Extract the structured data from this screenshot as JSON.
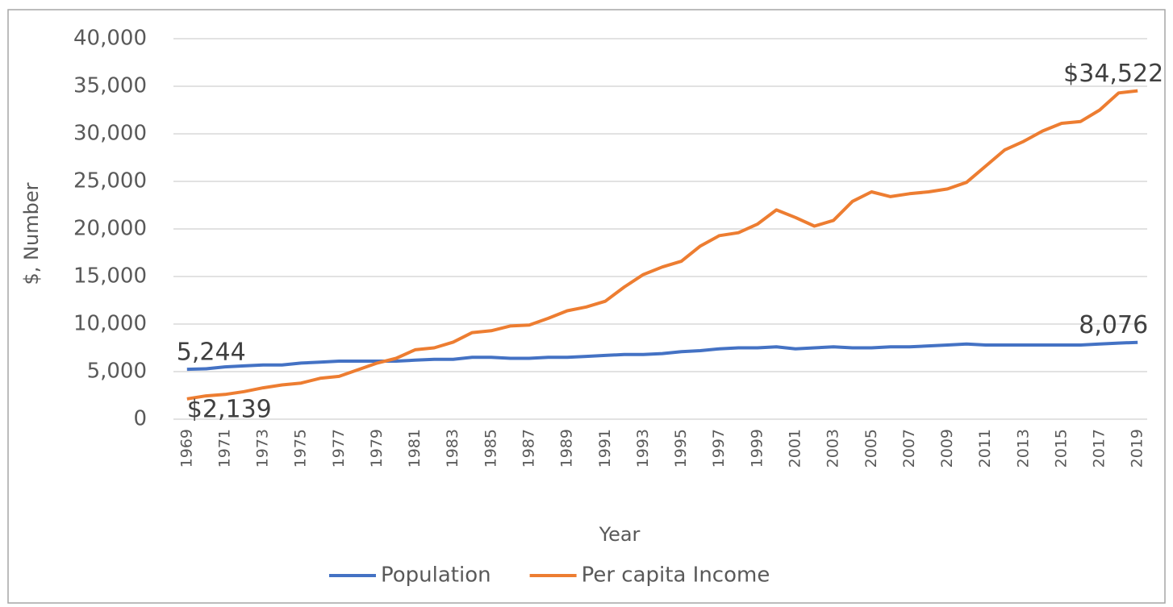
{
  "chart_data": {
    "type": "line",
    "y_label": "$, Number",
    "x_label": "Year",
    "categories": [
      "1969",
      null,
      "1971",
      null,
      "1973",
      null,
      "1975",
      null,
      "1977",
      null,
      "1979",
      null,
      "1981",
      null,
      "1983",
      null,
      "1985",
      null,
      "1987",
      null,
      "1989",
      null,
      "1991",
      null,
      "1993",
      null,
      "1995",
      null,
      "1997",
      null,
      "1999",
      null,
      "2001",
      null,
      "2003",
      null,
      "2005",
      null,
      "2007",
      null,
      "2009",
      null,
      "2011",
      null,
      "2013",
      null,
      "2015",
      null,
      "2017",
      null,
      "2019"
    ],
    "series": [
      {
        "name": "Population",
        "color": "#4472c4",
        "values": [
          5244,
          5300,
          5500,
          5600,
          5700,
          5700,
          5900,
          6000,
          6100,
          6100,
          6100,
          6100,
          6200,
          6300,
          6300,
          6500,
          6500,
          6400,
          6400,
          6500,
          6500,
          6600,
          6700,
          6800,
          6800,
          6900,
          7100,
          7200,
          7400,
          7500,
          7500,
          7600,
          7400,
          7500,
          7600,
          7500,
          7500,
          7600,
          7600,
          7700,
          7800,
          7900,
          7800,
          7800,
          7800,
          7800,
          7800,
          7800,
          7900,
          8000,
          8076
        ],
        "value_labels": [
          "5,244",
          null,
          null,
          null,
          null,
          null,
          null,
          null,
          null,
          null,
          null,
          null,
          null,
          null,
          null,
          null,
          null,
          null,
          null,
          null,
          null,
          null,
          null,
          null,
          null,
          null,
          null,
          null,
          null,
          null,
          null,
          null,
          null,
          null,
          null,
          null,
          null,
          null,
          null,
          null,
          null,
          null,
          null,
          null,
          null,
          null,
          null,
          null,
          null,
          null,
          "8,076"
        ]
      },
      {
        "name": "Per capita Income",
        "color": "#ed7d31",
        "values": [
          2139,
          2450,
          2600,
          2900,
          3300,
          3600,
          3800,
          4300,
          4500,
          5200,
          5900,
          6400,
          7300,
          7500,
          8100,
          9100,
          9300,
          9800,
          9900,
          10600,
          11400,
          11800,
          12400,
          13900,
          15200,
          16000,
          16600,
          18200,
          19300,
          19600,
          20500,
          22000,
          21200,
          20300,
          20900,
          22900,
          23900,
          23400,
          23700,
          23900,
          24200,
          24900,
          26600,
          28300,
          29200,
          30300,
          31100,
          31300,
          32500,
          34300,
          34522
        ],
        "value_labels": [
          "$2,139",
          null,
          null,
          null,
          null,
          null,
          null,
          null,
          null,
          null,
          null,
          null,
          null,
          null,
          null,
          null,
          null,
          null,
          null,
          null,
          null,
          null,
          null,
          null,
          null,
          null,
          null,
          null,
          null,
          null,
          null,
          null,
          null,
          null,
          null,
          null,
          null,
          null,
          null,
          null,
          null,
          null,
          null,
          null,
          null,
          null,
          null,
          null,
          null,
          null,
          "$34,522"
        ]
      }
    ],
    "ylim": [
      0,
      40000
    ],
    "yticks": [
      0,
      {
        "value": 5000,
        "label": "5,000"
      },
      {
        "value": 10000,
        "label": "10,000"
      },
      {
        "value": 15000,
        "label": "15,000"
      },
      {
        "value": 20000,
        "label": "20,000"
      },
      {
        "value": 25000,
        "label": "25,000"
      },
      {
        "value": 30000,
        "label": "30,000"
      },
      {
        "value": 35000,
        "label": "35,000"
      },
      {
        "value": 40000,
        "label": "40,000"
      }
    ],
    "grid": true,
    "legend": "bottom"
  }
}
